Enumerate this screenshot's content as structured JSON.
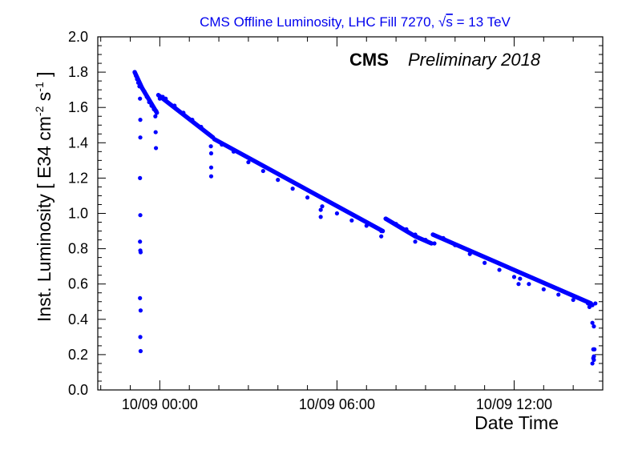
{
  "chart_data": {
    "type": "scatter",
    "title_parts": {
      "prefix": "CMS Offline Luminosity, LHC Fill 7270, ",
      "sqrt_symbol": "√",
      "sqrt_arg": "s",
      "suffix": " = 13 TeV"
    },
    "xlabel": "Date Time",
    "ylabel_parts": {
      "a": "Inst. Luminosity [ E34 cm",
      "exp1": "-2",
      "b": " s",
      "exp2": "-1",
      "c": " ]"
    },
    "experiment_label": "CMS",
    "status_label": "Preliminary 2018",
    "x_unit": "hours relative to 10/09 00:00",
    "xlim": [
      -2.1,
      15.0
    ],
    "ylim": [
      0.0,
      2.0
    ],
    "x_ticks": [
      {
        "value": 0,
        "label": "10/09 00:00"
      },
      {
        "value": 6,
        "label": "10/09 06:00"
      },
      {
        "value": 12,
        "label": "10/09 12:00"
      }
    ],
    "y_ticks": [
      {
        "value": 0.0,
        "label": "0.0"
      },
      {
        "value": 0.2,
        "label": "0.2"
      },
      {
        "value": 0.4,
        "label": "0.4"
      },
      {
        "value": 0.6,
        "label": "0.6"
      },
      {
        "value": 0.8,
        "label": "0.8"
      },
      {
        "value": 1.0,
        "label": "1.0"
      },
      {
        "value": 1.2,
        "label": "1.2"
      },
      {
        "value": 1.4,
        "label": "1.4"
      },
      {
        "value": 1.6,
        "label": "1.6"
      },
      {
        "value": 1.8,
        "label": "1.8"
      },
      {
        "value": 2.0,
        "label": "2.0"
      }
    ],
    "grid": false,
    "marker_color": "#0000ff",
    "points": [
      [
        -0.85,
        1.8
      ],
      [
        -0.81,
        1.78
      ],
      [
        -0.77,
        1.76
      ],
      [
        -0.73,
        1.74
      ],
      [
        -0.69,
        1.72
      ],
      [
        -0.67,
        1.65
      ],
      [
        -0.66,
        1.53
      ],
      [
        -0.66,
        1.43
      ],
      [
        -0.67,
        1.2
      ],
      [
        -0.66,
        0.99
      ],
      [
        -0.67,
        0.84
      ],
      [
        -0.66,
        0.79
      ],
      [
        -0.65,
        0.78
      ],
      [
        -0.67,
        0.52
      ],
      [
        -0.65,
        0.45
      ],
      [
        -0.66,
        0.3
      ],
      [
        -0.65,
        0.22
      ],
      [
        -0.6,
        1.71
      ],
      [
        -0.52,
        1.69
      ],
      [
        -0.44,
        1.66
      ],
      [
        -0.36,
        1.63
      ],
      [
        -0.28,
        1.61
      ],
      [
        -0.2,
        1.59
      ],
      [
        -0.12,
        1.58
      ],
      [
        -0.15,
        1.55
      ],
      [
        -0.14,
        1.46
      ],
      [
        -0.13,
        1.37
      ],
      [
        0.0,
        1.65
      ],
      [
        0.1,
        1.66
      ],
      [
        0.2,
        1.65
      ],
      [
        0.5,
        1.61
      ],
      [
        0.8,
        1.57
      ],
      [
        1.1,
        1.53
      ],
      [
        1.4,
        1.49
      ],
      [
        1.65,
        1.45
      ],
      [
        1.8,
        1.43
      ],
      [
        1.73,
        1.38
      ],
      [
        1.74,
        1.34
      ],
      [
        1.74,
        1.26
      ],
      [
        1.74,
        1.21
      ],
      [
        1.85,
        1.42
      ],
      [
        2.1,
        1.39
      ],
      [
        2.5,
        1.35
      ],
      [
        3.0,
        1.29
      ],
      [
        3.5,
        1.24
      ],
      [
        4.0,
        1.19
      ],
      [
        4.5,
        1.14
      ],
      [
        5.0,
        1.09
      ],
      [
        5.5,
        1.04
      ],
      [
        5.45,
        1.02
      ],
      [
        5.45,
        0.98
      ],
      [
        6.0,
        1.0
      ],
      [
        6.5,
        0.96
      ],
      [
        7.0,
        0.93
      ],
      [
        7.5,
        0.9
      ],
      [
        7.5,
        0.87
      ],
      [
        7.65,
        0.97
      ],
      [
        8.0,
        0.94
      ],
      [
        8.35,
        0.91
      ],
      [
        8.65,
        0.88
      ],
      [
        8.65,
        0.84
      ],
      [
        9.0,
        0.85
      ],
      [
        9.3,
        0.83
      ],
      [
        9.25,
        0.88
      ],
      [
        9.6,
        0.86
      ],
      [
        10.0,
        0.82
      ],
      [
        10.5,
        0.77
      ],
      [
        11.0,
        0.72
      ],
      [
        11.5,
        0.68
      ],
      [
        12.0,
        0.64
      ],
      [
        12.2,
        0.63
      ],
      [
        12.15,
        0.6
      ],
      [
        12.5,
        0.6
      ],
      [
        13.0,
        0.57
      ],
      [
        13.5,
        0.54
      ],
      [
        14.0,
        0.51
      ],
      [
        14.5,
        0.49
      ],
      [
        14.55,
        0.47
      ],
      [
        14.65,
        0.48
      ],
      [
        14.75,
        0.49
      ],
      [
        14.65,
        0.38
      ],
      [
        14.7,
        0.36
      ],
      [
        14.68,
        0.23
      ],
      [
        14.72,
        0.23
      ],
      [
        14.7,
        0.19
      ],
      [
        14.68,
        0.18
      ],
      [
        14.7,
        0.17
      ],
      [
        14.65,
        0.15
      ]
    ],
    "segments": [
      {
        "x_start": -0.85,
        "x_end": -0.6,
        "y_start": 1.8,
        "y_end": 1.71
      },
      {
        "x_start": -0.6,
        "x_end": -0.1,
        "y_start": 1.71,
        "y_end": 1.57
      },
      {
        "x_start": -0.05,
        "x_end": 1.8,
        "y_start": 1.67,
        "y_end": 1.43
      },
      {
        "x_start": 1.85,
        "x_end": 7.55,
        "y_start": 1.42,
        "y_end": 0.9
      },
      {
        "x_start": 7.65,
        "x_end": 8.65,
        "y_start": 0.97,
        "y_end": 0.87
      },
      {
        "x_start": 8.65,
        "x_end": 9.2,
        "y_start": 0.87,
        "y_end": 0.83
      },
      {
        "x_start": 9.25,
        "x_end": 14.6,
        "y_start": 0.88,
        "y_end": 0.49
      }
    ]
  }
}
